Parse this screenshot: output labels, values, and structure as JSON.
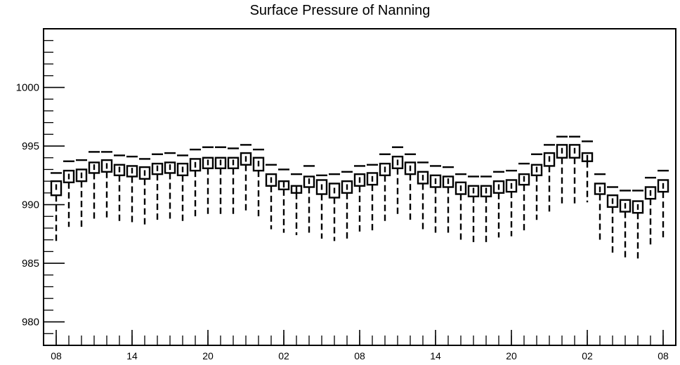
{
  "chart_data": {
    "type": "boxplot",
    "title": "Surface Pressure of Nanning",
    "xlabel": "",
    "ylabel": "",
    "ylim": [
      978,
      1005
    ],
    "yticks": [
      980,
      985,
      990,
      995,
      1000
    ],
    "xtick_labels": [
      "08",
      "14",
      "20",
      "02",
      "08",
      "14",
      "20",
      "02",
      "08"
    ],
    "xtick_label_positions": [
      0,
      6,
      12,
      18,
      24,
      30,
      36,
      42,
      48
    ],
    "grid": false,
    "boxes": [
      {
        "x": 0,
        "whisker_low": 986.8,
        "box_low": 990.8,
        "median": 991.5,
        "box_high": 992.0,
        "whisker_high": 992.7
      },
      {
        "x": 1,
        "whisker_low": 988.1,
        "box_low": 991.9,
        "median": 992.4,
        "box_high": 992.9,
        "whisker_high": 993.7
      },
      {
        "x": 2,
        "whisker_low": 988.1,
        "box_low": 992.0,
        "median": 992.5,
        "box_high": 993.0,
        "whisker_high": 993.8
      },
      {
        "x": 3,
        "whisker_low": 988.8,
        "box_low": 992.7,
        "median": 993.2,
        "box_high": 993.6,
        "whisker_high": 994.5
      },
      {
        "x": 4,
        "whisker_low": 988.9,
        "box_low": 992.8,
        "median": 993.3,
        "box_high": 993.8,
        "whisker_high": 994.5
      },
      {
        "x": 5,
        "whisker_low": 988.4,
        "box_low": 992.5,
        "median": 993.0,
        "box_high": 993.4,
        "whisker_high": 994.2
      },
      {
        "x": 6,
        "whisker_low": 988.3,
        "box_low": 992.4,
        "median": 992.9,
        "box_high": 993.3,
        "whisker_high": 994.1
      },
      {
        "x": 7,
        "whisker_low": 988.2,
        "box_low": 992.2,
        "median": 992.7,
        "box_high": 993.2,
        "whisker_high": 993.9
      },
      {
        "x": 8,
        "whisker_low": 988.6,
        "box_low": 992.6,
        "median": 993.1,
        "box_high": 993.5,
        "whisker_high": 994.3
      },
      {
        "x": 9,
        "whisker_low": 988.6,
        "box_low": 992.7,
        "median": 993.2,
        "box_high": 993.6,
        "whisker_high": 994.4
      },
      {
        "x": 10,
        "whisker_low": 988.4,
        "box_low": 992.5,
        "median": 993.0,
        "box_high": 993.5,
        "whisker_high": 994.2
      },
      {
        "x": 11,
        "whisker_low": 989.0,
        "box_low": 992.9,
        "median": 993.4,
        "box_high": 993.9,
        "whisker_high": 994.7
      },
      {
        "x": 12,
        "whisker_low": 989.2,
        "box_low": 993.1,
        "median": 993.6,
        "box_high": 994.0,
        "whisker_high": 994.9
      },
      {
        "x": 13,
        "whisker_low": 989.2,
        "box_low": 993.1,
        "median": 993.6,
        "box_high": 994.0,
        "whisker_high": 994.9
      },
      {
        "x": 14,
        "whisker_low": 989.2,
        "box_low": 993.1,
        "median": 993.6,
        "box_high": 994.0,
        "whisker_high": 994.8
      },
      {
        "x": 15,
        "whisker_low": 989.4,
        "box_low": 993.4,
        "median": 993.9,
        "box_high": 994.4,
        "whisker_high": 995.1
      },
      {
        "x": 16,
        "whisker_low": 989.0,
        "box_low": 992.9,
        "median": 993.5,
        "box_high": 994.0,
        "whisker_high": 994.7
      },
      {
        "x": 17,
        "whisker_low": 987.9,
        "box_low": 991.6,
        "median": 992.1,
        "box_high": 992.6,
        "whisker_high": 993.4
      },
      {
        "x": 18,
        "whisker_low": 987.6,
        "box_low": 991.3,
        "median": 991.7,
        "box_high": 992.0,
        "whisker_high": 993.0
      },
      {
        "x": 19,
        "whisker_low": 987.4,
        "box_low": 991.0,
        "median": 991.3,
        "box_high": 991.6,
        "whisker_high": 992.6
      },
      {
        "x": 20,
        "whisker_low": 987.6,
        "box_low": 991.5,
        "median": 992.0,
        "box_high": 992.4,
        "whisker_high": 993.3
      },
      {
        "x": 21,
        "whisker_low": 987.1,
        "box_low": 990.9,
        "median": 991.5,
        "box_high": 992.1,
        "whisker_high": 992.5
      },
      {
        "x": 22,
        "whisker_low": 986.9,
        "box_low": 990.6,
        "median": 991.2,
        "box_high": 991.8,
        "whisker_high": 992.6
      },
      {
        "x": 23,
        "whisker_low": 987.1,
        "box_low": 991.0,
        "median": 991.5,
        "box_high": 992.0,
        "whisker_high": 992.8
      },
      {
        "x": 24,
        "whisker_low": 987.5,
        "box_low": 991.6,
        "median": 992.1,
        "box_high": 992.6,
        "whisker_high": 993.3
      },
      {
        "x": 25,
        "whisker_low": 987.7,
        "box_low": 991.7,
        "median": 992.2,
        "box_high": 992.7,
        "whisker_high": 993.4
      },
      {
        "x": 26,
        "whisker_low": 988.6,
        "box_low": 992.5,
        "median": 993.0,
        "box_high": 993.5,
        "whisker_high": 994.3
      },
      {
        "x": 27,
        "whisker_low": 989.0,
        "box_low": 993.1,
        "median": 993.6,
        "box_high": 994.1,
        "whisker_high": 994.9
      },
      {
        "x": 28,
        "whisker_low": 988.5,
        "box_low": 992.6,
        "median": 993.1,
        "box_high": 993.6,
        "whisker_high": 994.3
      },
      {
        "x": 29,
        "whisker_low": 987.8,
        "box_low": 991.8,
        "median": 992.3,
        "box_high": 992.8,
        "whisker_high": 993.6
      },
      {
        "x": 30,
        "whisker_low": 987.6,
        "box_low": 991.5,
        "median": 992.0,
        "box_high": 992.5,
        "whisker_high": 993.3
      },
      {
        "x": 31,
        "whisker_low": 987.5,
        "box_low": 991.5,
        "median": 992.0,
        "box_high": 992.4,
        "whisker_high": 993.2
      },
      {
        "x": 32,
        "whisker_low": 986.8,
        "box_low": 990.9,
        "median": 991.4,
        "box_high": 991.9,
        "whisker_high": 992.6
      },
      {
        "x": 33,
        "whisker_low": 986.7,
        "box_low": 990.7,
        "median": 991.2,
        "box_high": 991.6,
        "whisker_high": 992.4
      },
      {
        "x": 34,
        "whisker_low": 986.8,
        "box_low": 990.7,
        "median": 991.2,
        "box_high": 991.6,
        "whisker_high": 992.4
      },
      {
        "x": 35,
        "whisker_low": 987.2,
        "box_low": 991.0,
        "median": 991.5,
        "box_high": 992.0,
        "whisker_high": 992.8
      },
      {
        "x": 36,
        "whisker_low": 987.3,
        "box_low": 991.1,
        "median": 991.6,
        "box_high": 992.1,
        "whisker_high": 992.9
      },
      {
        "x": 37,
        "whisker_low": 987.8,
        "box_low": 991.7,
        "median": 992.2,
        "box_high": 992.6,
        "whisker_high": 993.5
      },
      {
        "x": 38,
        "whisker_low": 988.7,
        "box_low": 992.5,
        "median": 993.0,
        "box_high": 993.4,
        "whisker_high": 994.3
      },
      {
        "x": 39,
        "whisker_low": 989.2,
        "box_low": 993.3,
        "median": 993.9,
        "box_high": 994.4,
        "whisker_high": 995.1
      },
      {
        "x": 40,
        "whisker_low": 989.9,
        "box_low": 994.0,
        "median": 994.6,
        "box_high": 995.1,
        "whisker_high": 995.8
      },
      {
        "x": 41,
        "whisker_low": 989.9,
        "box_low": 994.0,
        "median": 994.6,
        "box_high": 995.1,
        "whisker_high": 995.8
      },
      {
        "x": 42,
        "whisker_low": 990.2,
        "box_low": 993.7,
        "median": 994.0,
        "box_high": 994.4,
        "whisker_high": 995.4
      },
      {
        "x": 43,
        "whisker_low": 987.0,
        "box_low": 990.9,
        "median": 991.3,
        "box_high": 991.8,
        "whisker_high": 992.6
      },
      {
        "x": 44,
        "whisker_low": 985.8,
        "box_low": 989.8,
        "median": 990.3,
        "box_high": 990.8,
        "whisker_high": 991.5
      },
      {
        "x": 45,
        "whisker_low": 985.4,
        "box_low": 989.4,
        "median": 989.9,
        "box_high": 990.4,
        "whisker_high": 991.2
      },
      {
        "x": 46,
        "whisker_low": 985.4,
        "box_low": 989.3,
        "median": 989.8,
        "box_high": 990.3,
        "whisker_high": 991.2
      },
      {
        "x": 47,
        "whisker_low": 986.6,
        "box_low": 990.5,
        "median": 991.0,
        "box_high": 991.5,
        "whisker_high": 992.3
      },
      {
        "x": 48,
        "whisker_low": 987.1,
        "box_low": 991.1,
        "median": 991.6,
        "box_high": 992.1,
        "whisker_high": 992.9
      }
    ]
  }
}
